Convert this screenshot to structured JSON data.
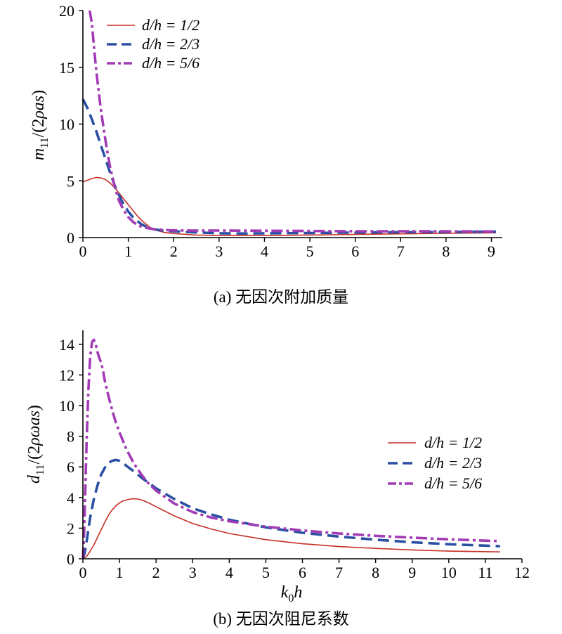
{
  "chart_data": [
    {
      "type": "line",
      "caption": "(a) 无因次附加质量",
      "ylabel": "m11/(2ρas)",
      "xlim": [
        0,
        9.1
      ],
      "ylim": [
        0,
        20
      ],
      "xticks": [
        0,
        1,
        2,
        3,
        4,
        5,
        6,
        7,
        8,
        9
      ],
      "yticks": [
        0,
        5,
        10,
        15,
        20
      ],
      "legend_position": "top-left",
      "series": [
        {
          "name": "d/h = 1/2",
          "color": "#c62f24",
          "style": "solid",
          "points": [
            [
              0,
              4.9
            ],
            [
              0.1,
              5.05
            ],
            [
              0.2,
              5.2
            ],
            [
              0.3,
              5.3
            ],
            [
              0.4,
              5.25
            ],
            [
              0.5,
              5.1
            ],
            [
              0.6,
              4.8
            ],
            [
              0.7,
              4.4
            ],
            [
              0.8,
              3.9
            ],
            [
              0.9,
              3.4
            ],
            [
              1.0,
              2.9
            ],
            [
              1.1,
              2.4
            ],
            [
              1.2,
              1.9
            ],
            [
              1.3,
              1.5
            ],
            [
              1.4,
              1.15
            ],
            [
              1.5,
              0.85
            ],
            [
              1.6,
              0.65
            ],
            [
              1.8,
              0.45
            ],
            [
              2.0,
              0.35
            ],
            [
              2.5,
              0.22
            ],
            [
              3.0,
              0.18
            ],
            [
              4.0,
              0.18
            ],
            [
              5.0,
              0.22
            ],
            [
              6.0,
              0.28
            ],
            [
              7.0,
              0.33
            ],
            [
              8.0,
              0.38
            ],
            [
              9.1,
              0.42
            ]
          ]
        },
        {
          "name": "d/h = 2/3",
          "color": "#2a4fa3",
          "style": "dashed",
          "points": [
            [
              0,
              12.2
            ],
            [
              0.1,
              11.4
            ],
            [
              0.2,
              10.4
            ],
            [
              0.3,
              9.3
            ],
            [
              0.4,
              8.1
            ],
            [
              0.5,
              6.9
            ],
            [
              0.6,
              5.7
            ],
            [
              0.7,
              4.6
            ],
            [
              0.8,
              3.7
            ],
            [
              0.9,
              2.9
            ],
            [
              1.0,
              2.3
            ],
            [
              1.1,
              1.8
            ],
            [
              1.2,
              1.45
            ],
            [
              1.3,
              1.15
            ],
            [
              1.4,
              0.95
            ],
            [
              1.5,
              0.8
            ],
            [
              1.6,
              0.7
            ],
            [
              1.8,
              0.6
            ],
            [
              2.0,
              0.55
            ],
            [
              2.5,
              0.45
            ],
            [
              3.0,
              0.38
            ],
            [
              3.5,
              0.36
            ],
            [
              4.0,
              0.37
            ],
            [
              5.0,
              0.4
            ],
            [
              6.0,
              0.44
            ],
            [
              7.0,
              0.47
            ],
            [
              8.0,
              0.49
            ],
            [
              9.1,
              0.52
            ]
          ]
        },
        {
          "name": "d/h = 5/6",
          "color": "#a23bb5",
          "style": "dashdot",
          "points": [
            [
              0.15,
              20
            ],
            [
              0.2,
              18.8
            ],
            [
              0.25,
              16.5
            ],
            [
              0.3,
              14.5
            ],
            [
              0.35,
              12.8
            ],
            [
              0.4,
              11.2
            ],
            [
              0.45,
              9.8
            ],
            [
              0.5,
              8.5
            ],
            [
              0.55,
              7.3
            ],
            [
              0.6,
              6.2
            ],
            [
              0.7,
              4.5
            ],
            [
              0.8,
              3.2
            ],
            [
              0.9,
              2.4
            ],
            [
              1.0,
              1.8
            ],
            [
              1.1,
              1.4
            ],
            [
              1.2,
              1.1
            ],
            [
              1.3,
              0.95
            ],
            [
              1.4,
              0.85
            ],
            [
              1.6,
              0.72
            ],
            [
              1.8,
              0.66
            ],
            [
              2.0,
              0.63
            ],
            [
              2.5,
              0.62
            ],
            [
              3.0,
              0.62
            ],
            [
              4.0,
              0.6
            ],
            [
              5.0,
              0.58
            ],
            [
              6.0,
              0.56
            ],
            [
              7.0,
              0.55
            ],
            [
              8.0,
              0.55
            ],
            [
              9.1,
              0.54
            ]
          ]
        }
      ]
    },
    {
      "type": "line",
      "caption": "(b) 无因次阻尼系数",
      "xlabel": "k0h",
      "ylabel": "d11/(2ρωas)",
      "xlim": [
        0,
        12
      ],
      "ylim": [
        0,
        14.5
      ],
      "xticks": [
        0,
        1,
        2,
        3,
        4,
        5,
        6,
        7,
        8,
        9,
        10,
        11,
        12
      ],
      "yticks": [
        0,
        2,
        4,
        6,
        8,
        10,
        12,
        14
      ],
      "legend_position": "right",
      "series": [
        {
          "name": "d/h = 1/2",
          "color": "#c62f24",
          "style": "solid",
          "points": [
            [
              0,
              0
            ],
            [
              0.1,
              0.15
            ],
            [
              0.2,
              0.5
            ],
            [
              0.3,
              0.9
            ],
            [
              0.4,
              1.4
            ],
            [
              0.5,
              1.9
            ],
            [
              0.6,
              2.4
            ],
            [
              0.7,
              2.85
            ],
            [
              0.8,
              3.2
            ],
            [
              0.9,
              3.45
            ],
            [
              1.0,
              3.65
            ],
            [
              1.1,
              3.78
            ],
            [
              1.2,
              3.85
            ],
            [
              1.3,
              3.9
            ],
            [
              1.4,
              3.92
            ],
            [
              1.5,
              3.9
            ],
            [
              1.6,
              3.85
            ],
            [
              1.8,
              3.65
            ],
            [
              2.0,
              3.4
            ],
            [
              2.5,
              2.8
            ],
            [
              3.0,
              2.3
            ],
            [
              3.5,
              1.95
            ],
            [
              4.0,
              1.65
            ],
            [
              5.0,
              1.25
            ],
            [
              6.0,
              0.98
            ],
            [
              7.0,
              0.8
            ],
            [
              8.0,
              0.68
            ],
            [
              9.0,
              0.58
            ],
            [
              10.0,
              0.5
            ],
            [
              11.4,
              0.45
            ]
          ]
        },
        {
          "name": "d/h = 2/3",
          "color": "#2a4fa3",
          "style": "dashed",
          "points": [
            [
              0,
              0
            ],
            [
              0.05,
              0.4
            ],
            [
              0.1,
              1.1
            ],
            [
              0.15,
              1.9
            ],
            [
              0.2,
              2.7
            ],
            [
              0.3,
              3.9
            ],
            [
              0.4,
              4.8
            ],
            [
              0.5,
              5.5
            ],
            [
              0.6,
              5.95
            ],
            [
              0.7,
              6.25
            ],
            [
              0.8,
              6.4
            ],
            [
              0.9,
              6.45
            ],
            [
              1.0,
              6.4
            ],
            [
              1.1,
              6.25
            ],
            [
              1.2,
              6.05
            ],
            [
              1.4,
              5.7
            ],
            [
              1.6,
              5.3
            ],
            [
              1.8,
              4.95
            ],
            [
              2.0,
              4.6
            ],
            [
              2.5,
              3.9
            ],
            [
              3.0,
              3.3
            ],
            [
              3.5,
              2.9
            ],
            [
              4.0,
              2.55
            ],
            [
              5.0,
              2.05
            ],
            [
              6.0,
              1.7
            ],
            [
              7.0,
              1.45
            ],
            [
              8.0,
              1.25
            ],
            [
              9.0,
              1.08
            ],
            [
              10.0,
              0.95
            ],
            [
              11.4,
              0.82
            ]
          ]
        },
        {
          "name": "d/h = 5/6",
          "color": "#a23bb5",
          "style": "dashdot",
          "points": [
            [
              0,
              0
            ],
            [
              0.03,
              1.5
            ],
            [
              0.06,
              4.0
            ],
            [
              0.1,
              7.5
            ],
            [
              0.15,
              11.0
            ],
            [
              0.2,
              13.2
            ],
            [
              0.25,
              14.15
            ],
            [
              0.3,
              14.3
            ],
            [
              0.35,
              14.0
            ],
            [
              0.4,
              13.5
            ],
            [
              0.45,
              13.1
            ],
            [
              0.5,
              12.8
            ],
            [
              0.55,
              12.3
            ],
            [
              0.6,
              11.6
            ],
            [
              0.7,
              10.6
            ],
            [
              0.8,
              9.7
            ],
            [
              0.9,
              8.9
            ],
            [
              1.0,
              8.25
            ],
            [
              1.2,
              7.1
            ],
            [
              1.4,
              6.2
            ],
            [
              1.6,
              5.5
            ],
            [
              1.8,
              4.9
            ],
            [
              2.0,
              4.45
            ],
            [
              2.5,
              3.6
            ],
            [
              3.0,
              3.05
            ],
            [
              3.5,
              2.7
            ],
            [
              4.0,
              2.45
            ],
            [
              5.0,
              2.1
            ],
            [
              6.0,
              1.85
            ],
            [
              7.0,
              1.65
            ],
            [
              8.0,
              1.5
            ],
            [
              9.0,
              1.38
            ],
            [
              10.0,
              1.27
            ],
            [
              11.4,
              1.15
            ]
          ]
        }
      ]
    }
  ]
}
